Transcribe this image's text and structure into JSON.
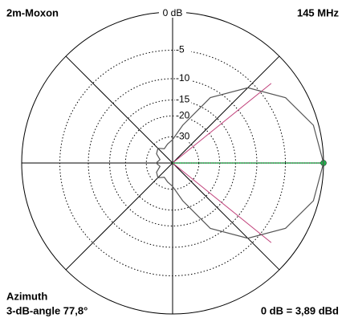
{
  "chart_data": {
    "type": "polar",
    "scale": "arrl-log",
    "title": "2m-Moxon",
    "subtitle": "145 MHz",
    "annotations": [
      "Azimuth",
      "3-dB-angle 77,8°",
      "0 dB = 3,89 dBd"
    ],
    "rticks": [
      {
        "value": 0,
        "label": "0 dB"
      },
      -5,
      -10,
      -15,
      -20,
      -30
    ],
    "angles": [
      0,
      15,
      30,
      45,
      60,
      75,
      90,
      105,
      120,
      135,
      150,
      165,
      180,
      195,
      210,
      225,
      240,
      255,
      270,
      285,
      300,
      315,
      330,
      345
    ],
    "series": [
      {
        "color": "#555555",
        "values": [
          0,
          -0.6,
          -2.5,
          -6.0,
          -11.9,
          -23.2,
          -32,
          -35,
          -38,
          -34,
          -36,
          -42,
          -38,
          -42,
          -36,
          -34,
          -38,
          -35,
          -32,
          -23.2,
          -11.9,
          -6.0,
          -2.5,
          -0.6
        ]
      }
    ],
    "half_power": {
      "angles": [
        38.9,
        -38.9
      ],
      "level": -3,
      "color": "#c0407a"
    },
    "maximum": {
      "angle": 0,
      "level": 0,
      "color": "#22b14c"
    }
  }
}
